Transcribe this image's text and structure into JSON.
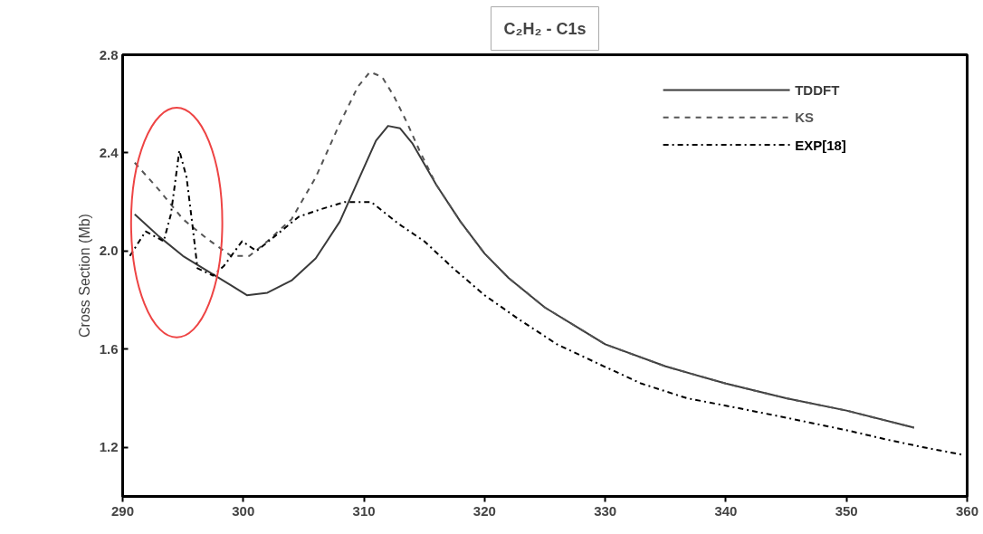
{
  "chart_data": {
    "type": "line",
    "title": "C₂H₂ - C1s",
    "ylabel": "Cross Section (Mb)",
    "xlim": [
      290,
      360
    ],
    "xticks": [
      290,
      300,
      310,
      320,
      330,
      340,
      350,
      360
    ],
    "ylim": [
      1.0,
      2.8
    ],
    "yticks": [
      1.2,
      1.6,
      {
        "value": 2,
        "label": "2.0"
      },
      2.4,
      2.8
    ],
    "grid": false,
    "legend": "top right",
    "marker": "none",
    "series": [
      {
        "name": "TDDFT",
        "color": "#3a3a3a",
        "line_style": "solid",
        "x": [
          291,
          293,
          295,
          297,
          299,
          300.3,
          302,
          304,
          306,
          308,
          310,
          311,
          312,
          313,
          314,
          316,
          318,
          320,
          322,
          325,
          328,
          330,
          335,
          340,
          345,
          350,
          355.6
        ],
        "values": [
          2.15,
          2.06,
          1.98,
          1.92,
          1.86,
          1.82,
          1.83,
          1.88,
          1.97,
          2.12,
          2.34,
          2.45,
          2.51,
          2.5,
          2.44,
          2.27,
          2.12,
          1.99,
          1.89,
          1.77,
          1.68,
          1.62,
          1.53,
          1.46,
          1.4,
          1.35,
          1.28
        ]
      },
      {
        "name": "KS",
        "color": "#555555",
        "line_style": "dashed",
        "x": [
          291,
          293,
          295,
          297,
          299,
          300.5,
          302,
          304,
          306,
          308,
          309.5,
          310.5,
          311.5,
          312.5,
          313.6,
          314.6,
          316,
          318,
          320,
          322,
          325,
          328,
          330,
          335,
          340,
          345,
          350,
          355.6
        ],
        "values": [
          2.36,
          2.25,
          2.13,
          2.05,
          1.98,
          1.98,
          2.04,
          2.13,
          2.3,
          2.52,
          2.67,
          2.73,
          2.71,
          2.63,
          2.52,
          2.41,
          2.27,
          2.12,
          1.99,
          1.89,
          1.77,
          1.68,
          1.62,
          1.53,
          1.46,
          1.4,
          1.35,
          1.28
        ]
      },
      {
        "name": "EXP[18]",
        "color": "#000000",
        "line_style": "dashdot",
        "x": [
          290.6,
          291.9,
          293.4,
          294.0,
          294.7,
          295.3,
          295.8,
          296.2,
          297.5,
          298.4,
          299.9,
          301.1,
          302.6,
          304.6,
          306.4,
          308.4,
          310.6,
          312.9,
          315,
          317.4,
          320,
          322.9,
          326,
          329.9,
          333,
          336.8,
          340,
          345.1,
          350,
          353.5,
          356.4,
          359.6
        ],
        "values": [
          1.98,
          2.08,
          2.04,
          2.15,
          2.41,
          2.3,
          2.1,
          1.93,
          1.9,
          1.94,
          2.04,
          2.0,
          2.06,
          2.14,
          2.17,
          2.2,
          2.2,
          2.11,
          2.04,
          1.93,
          1.82,
          1.72,
          1.62,
          1.53,
          1.46,
          1.4,
          1.37,
          1.32,
          1.27,
          1.23,
          1.2,
          1.17
        ]
      }
    ]
  }
}
